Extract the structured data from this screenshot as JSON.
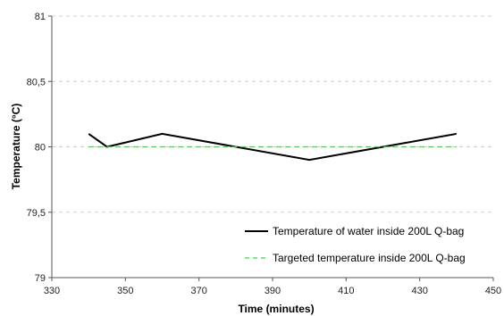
{
  "chart_data": {
    "type": "line",
    "title": "",
    "xlabel": "Time (minutes)",
    "ylabel": "Temperature (°C)",
    "xlim": [
      330,
      450
    ],
    "ylim": [
      79,
      81
    ],
    "x_ticks": [
      330,
      350,
      370,
      390,
      410,
      430,
      450
    ],
    "y_ticks": [
      79,
      79.5,
      80,
      80.5,
      81
    ],
    "x_tick_labels": [
      "330",
      "350",
      "370",
      "390",
      "410",
      "430",
      "450"
    ],
    "y_tick_labels": [
      "79",
      "79,5",
      "80",
      "80,5",
      "81"
    ],
    "grid": "horizontal dashed",
    "legend_position": "bottom-right",
    "series": [
      {
        "name": "Temperature of water inside 200L Q-bag",
        "color": "#000000",
        "style": "solid",
        "x": [
          340,
          345,
          360,
          400,
          440
        ],
        "y": [
          80.1,
          80.0,
          80.1,
          79.9,
          80.1
        ]
      },
      {
        "name": "Targeted temperature inside 200L Q-bag",
        "color": "#33dd33",
        "style": "dashed",
        "x": [
          340,
          440
        ],
        "y": [
          80.0,
          80.0
        ]
      }
    ]
  }
}
